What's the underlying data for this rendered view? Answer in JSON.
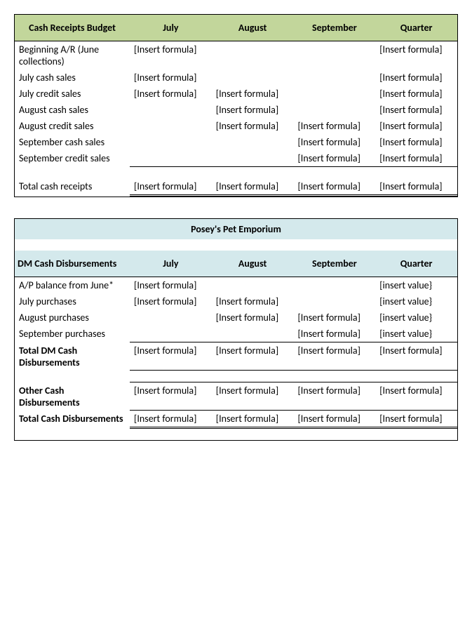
{
  "table1": {
    "header": {
      "title": "Cash Receipts Budget",
      "cols": [
        "July",
        "August",
        "September",
        "Quarter"
      ]
    },
    "rows": [
      {
        "label": "Beginning A/R (June collections)",
        "july": "[Insert formula]",
        "aug": "",
        "sep": "",
        "qtr": "[Insert formula]"
      },
      {
        "label": "July cash sales",
        "july": "[Insert formula]",
        "aug": "",
        "sep": "",
        "qtr": "[Insert formula]"
      },
      {
        "label": "July credit sales",
        "july": "[Insert formula]",
        "aug": "[Insert formula]",
        "sep": "",
        "qtr": "[Insert formula]"
      },
      {
        "label": "August cash sales",
        "july": "",
        "aug": "[Insert formula]",
        "sep": "",
        "qtr": "[Insert formula]"
      },
      {
        "label": "August credit sales",
        "july": "",
        "aug": "[Insert formula]",
        "sep": "[Insert formula]",
        "qtr": "[Insert formula]"
      },
      {
        "label": "September cash sales",
        "july": "",
        "aug": "",
        "sep": "[Insert formula]",
        "qtr": "[Insert formula]"
      },
      {
        "label": "September credit sales",
        "july": "",
        "aug": "",
        "sep": "[Insert formula]",
        "qtr": "[Insert formula]"
      }
    ],
    "total": {
      "label": "Total cash receipts",
      "july": "[Insert formula]",
      "aug": "[Insert formula]",
      "sep": "[Insert formula]",
      "qtr": "[Insert formula]"
    }
  },
  "table2": {
    "title": "Posey's Pet Emporium",
    "header": {
      "title": "DM Cash Disbursements",
      "cols": [
        "July",
        "August",
        "September",
        "Quarter"
      ]
    },
    "rows": [
      {
        "label": "A/P balance from June*",
        "july": "[Insert formula]",
        "aug": "",
        "sep": "",
        "qtr": "[insert value}"
      },
      {
        "label": "July purchases",
        "july": "[Insert formula]",
        "aug": "[Insert formula]",
        "sep": "",
        "qtr": "[insert value}"
      },
      {
        "label": "August purchases",
        "july": "",
        "aug": "[Insert formula]",
        "sep": "[Insert formula]",
        "qtr": "[insert value}"
      },
      {
        "label": "September purchases",
        "july": "",
        "aug": "",
        "sep": "[Insert formula]",
        "qtr": "[insert value}"
      }
    ],
    "tot_dm": {
      "label": "Total DM Cash Disbursements",
      "july": "[Insert formula]",
      "aug": "[Insert formula]",
      "sep": "[Insert formula]",
      "qtr": "[Insert formula]"
    },
    "other": {
      "label": "Other Cash Disbursements",
      "july": "[Insert formula]",
      "aug": "[Insert formula]",
      "sep": "[Insert formula]",
      "qtr": "[Insert formula]"
    },
    "tot_cash": {
      "label": "Total Cash Disbursements",
      "july": "[Insert formula]",
      "aug": "[Insert formula]",
      "sep": "[Insert formula]",
      "qtr": "[Insert formula]"
    }
  },
  "colors": {
    "header_green": "#c2d69b",
    "header_blue": "#d4e9ec",
    "border": "#000000",
    "text": "#000000",
    "background": "#ffffff"
  },
  "fonts": {
    "family": "Calibri",
    "size_pt": 11
  }
}
